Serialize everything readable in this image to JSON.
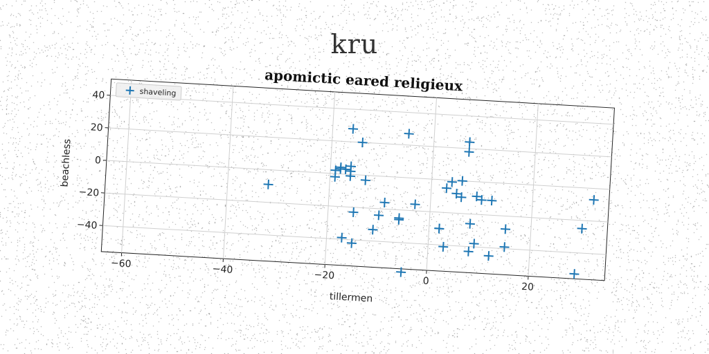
{
  "page": {
    "title": "kru"
  },
  "chart_data": {
    "type": "scatter",
    "title": "apomictic eared religieux",
    "xlabel": "tillermen",
    "ylabel": "beachless",
    "xlim": [
      -64,
      35
    ],
    "ylim": [
      -56,
      50
    ],
    "xticks": [
      -60,
      -40,
      -20,
      0,
      20
    ],
    "yticks": [
      -40,
      -20,
      0,
      20,
      40
    ],
    "grid": true,
    "legend_position": "top-left",
    "marker": "plus",
    "series": [
      {
        "name": "shaveling",
        "color": "#1f77b4",
        "x": [
          -32,
          -18,
          -19,
          -19,
          -18,
          -17,
          -16,
          -16,
          -16,
          -16,
          -14,
          -13,
          -11,
          -15,
          -17,
          -15,
          -10,
          -9,
          -6,
          -6,
          -5,
          -5,
          -3,
          2,
          2,
          3,
          3,
          4,
          5,
          6,
          6,
          7,
          7,
          8,
          8,
          9,
          9,
          10,
          12,
          12,
          15,
          15,
          29,
          30,
          32
        ],
        "y": [
          -9,
          4,
          2,
          -2,
          3,
          3,
          28,
          5,
          2,
          -1,
          20,
          -3,
          -33,
          -23,
          -39,
          -42,
          -24,
          -16,
          -25,
          -26,
          -58,
          27,
          -16,
          -30,
          -30,
          -41,
          -5,
          -1,
          -8,
          -10,
          0,
          24,
          18,
          -26,
          -43,
          -38,
          -9,
          -11,
          -45,
          -11,
          -39,
          -28,
          -53,
          -25,
          -7
        ]
      }
    ]
  }
}
